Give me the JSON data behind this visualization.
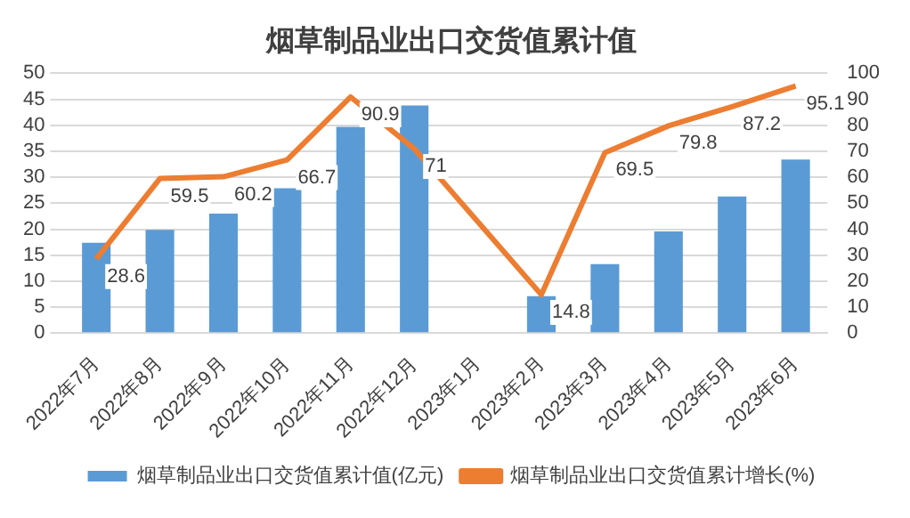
{
  "chart_data": {
    "type": "bar",
    "title": "烟草制品业出口交货值累计值",
    "categories": [
      "2022年7月",
      "2022年8月",
      "2022年9月",
      "2022年10月",
      "2022年11月",
      "2022年12月",
      "2023年1月",
      "2023年2月",
      "2023年3月",
      "2023年4月",
      "2023年5月",
      "2023年6月"
    ],
    "series": [
      {
        "name": "烟草制品业出口交货值累计值(亿元)",
        "color": "#5b9bd5",
        "values": [
          17.4,
          19.9,
          23,
          27.9,
          39.7,
          43.8,
          null,
          7.1,
          13.3,
          19.6,
          26.3,
          33.4
        ]
      },
      {
        "name": "烟草制品业出口交货值累计增长(%)",
        "type": "line",
        "axis": "y2",
        "color": "#ed7d31",
        "values": [
          28.6,
          59.5,
          60.2,
          66.7,
          90.9,
          71,
          null,
          14.8,
          69.5,
          79.8,
          87.2,
          95.1
        ],
        "value_labels": [
          "28.6",
          "59.5",
          "60.2",
          "66.7",
          "90.9",
          "71",
          null,
          "14.8",
          "69.5",
          "79.8",
          "87.2",
          "95.1"
        ]
      }
    ],
    "ylim": [
      0,
      50
    ],
    "yticks": [
      0,
      5,
      10,
      15,
      20,
      25,
      30,
      35,
      40,
      45,
      50
    ],
    "y2lim": [
      0,
      100
    ],
    "y2ticks": [
      0,
      10,
      20,
      30,
      40,
      50,
      60,
      70,
      80,
      90,
      100
    ],
    "grid": "y",
    "legend": "bottom",
    "marker": "none"
  }
}
